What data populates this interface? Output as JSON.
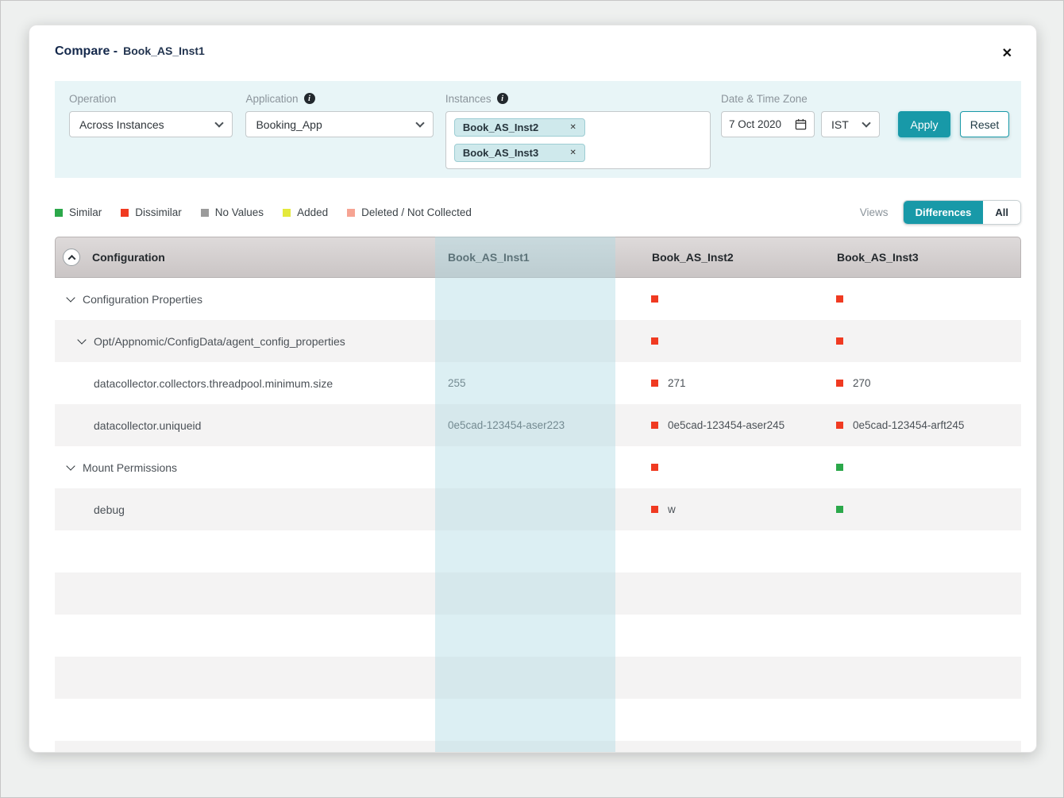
{
  "colors": {
    "accent": "#1899a8",
    "similar": "#2ba84a",
    "dissimilar": "#f03a21",
    "no_values": "#9b9b9b",
    "added": "#e4e93c",
    "deleted": "#f6a493",
    "column_highlight": "rgba(171,218,226,0.42)"
  },
  "modal": {
    "title": "Compare -",
    "subtitle": "Book_AS_Inst1",
    "close_icon": "✕"
  },
  "filters": {
    "operation": {
      "label": "Operation",
      "value": "Across Instances"
    },
    "application": {
      "label": "Application",
      "value": "Booking_App"
    },
    "instances": {
      "label": "Instances",
      "remove_icon": "✕",
      "chips": [
        {
          "label": "Book_AS_Inst2"
        },
        {
          "label": "Book_AS_Inst3"
        }
      ]
    },
    "datetime": {
      "label": "Date & Time Zone",
      "date": "7 Oct 2020",
      "timezone": "IST"
    },
    "apply_label": "Apply",
    "reset_label": "Reset"
  },
  "legend": {
    "items": [
      {
        "key": "similar",
        "label": "Similar",
        "color": "#2ba84a"
      },
      {
        "key": "dissimilar",
        "label": "Dissimilar",
        "color": "#f03a21"
      },
      {
        "key": "no_values",
        "label": "No Values",
        "color": "#9b9b9b"
      },
      {
        "key": "added",
        "label": "Added",
        "color": "#e4e93c"
      },
      {
        "key": "deleted",
        "label": "Deleted / Not Collected",
        "color": "#f6a493"
      }
    ],
    "views_label": "Views",
    "views_options": [
      "Differences",
      "All"
    ],
    "views_selected": "Differences"
  },
  "table": {
    "group_header": "Configuration",
    "columns": [
      "Book_AS_Inst1",
      "Book_AS_Inst2",
      "Book_AS_Inst3"
    ],
    "empty_rows": 6,
    "rows": [
      {
        "name": "Configuration Properties",
        "indent": 0,
        "expandable": true,
        "cells": [
          {},
          {
            "marker": "dissimilar"
          },
          {
            "marker": "dissimilar"
          }
        ]
      },
      {
        "name": "Opt/Appnomic/ConfigData/agent_config_properties",
        "indent": 1,
        "expandable": true,
        "cells": [
          {},
          {
            "marker": "dissimilar"
          },
          {
            "marker": "dissimilar"
          }
        ]
      },
      {
        "name": "datacollector.collectors.threadpool.minimum.size",
        "indent": 1,
        "expandable": false,
        "cells": [
          {
            "text": "255"
          },
          {
            "marker": "dissimilar",
            "text": "271"
          },
          {
            "marker": "dissimilar",
            "text": "270"
          }
        ]
      },
      {
        "name": "datacollector.uniqueid",
        "indent": 1,
        "expandable": false,
        "cells": [
          {
            "text": "0e5cad-123454-aser223"
          },
          {
            "marker": "dissimilar",
            "text": "0e5cad-123454-aser245"
          },
          {
            "marker": "dissimilar",
            "text": "0e5cad-123454-arft245"
          }
        ]
      },
      {
        "name": "Mount Permissions",
        "indent": 0,
        "expandable": true,
        "cells": [
          {},
          {
            "marker": "dissimilar"
          },
          {
            "marker": "similar"
          }
        ]
      },
      {
        "name": "debug",
        "indent": 1,
        "expandable": false,
        "cells": [
          {},
          {
            "marker": "dissimilar",
            "text": "w"
          },
          {
            "marker": "similar"
          }
        ]
      }
    ]
  }
}
